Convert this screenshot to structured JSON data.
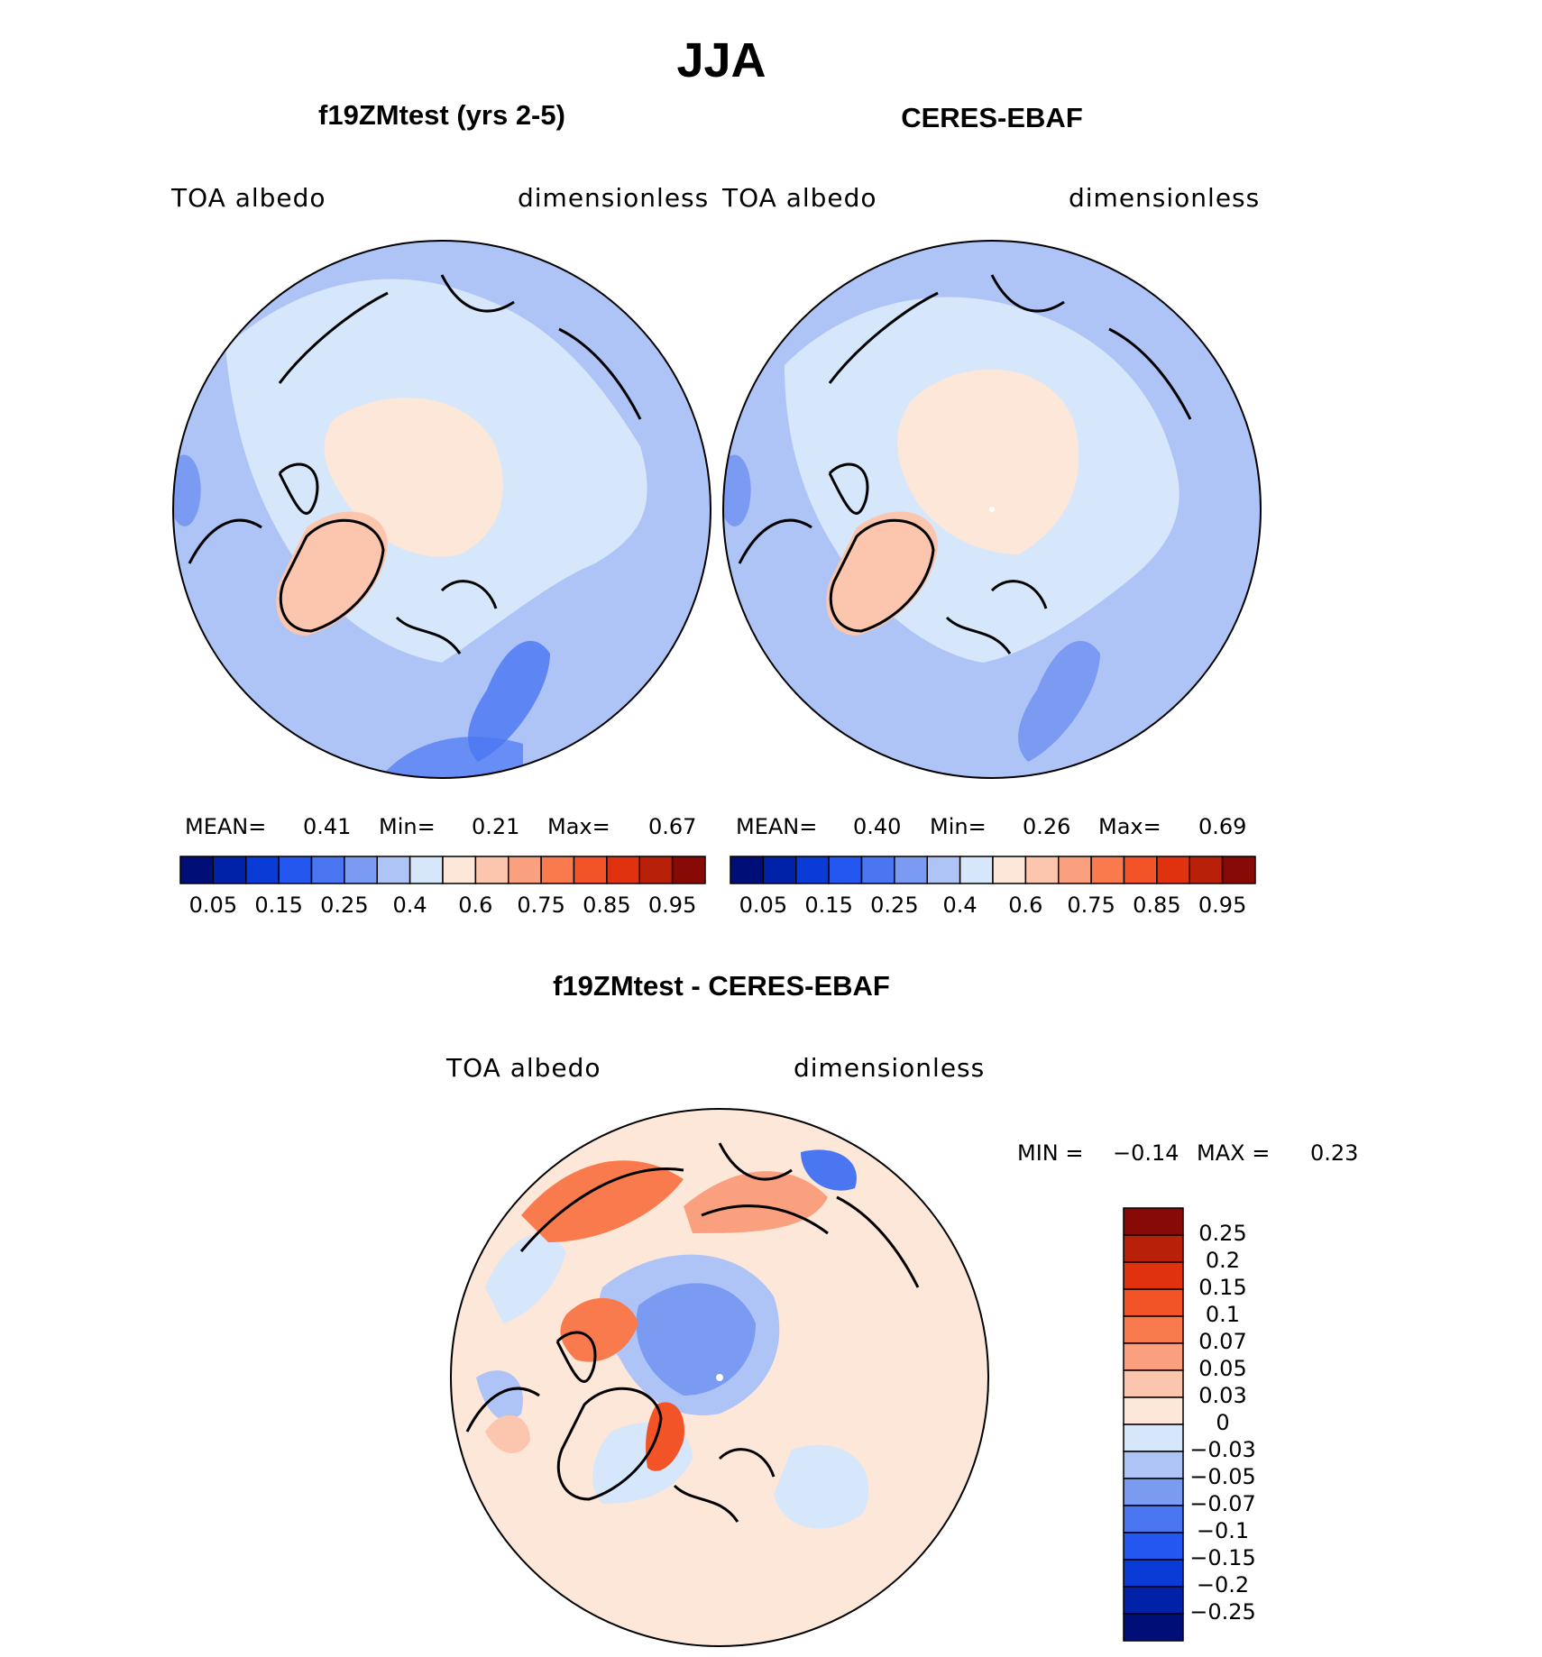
{
  "title": "JJA",
  "panels": [
    {
      "title": "f19ZMtest (yrs 2-5)",
      "left_label": "TOA albedo",
      "right_label": "dimensionless",
      "stats": {
        "mean_label": "MEAN=",
        "mean": "0.41",
        "min_label": "Min=",
        "min": "0.21",
        "max_label": "Max=",
        "max": "0.67"
      }
    },
    {
      "title": "CERES-EBAF",
      "left_label": "TOA albedo",
      "right_label": "dimensionless",
      "stats": {
        "mean_label": "MEAN=",
        "mean": "0.40",
        "min_label": "Min=",
        "min": "0.26",
        "max_label": "Max=",
        "max": "0.69"
      }
    },
    {
      "title": "f19ZMtest - CERES-EBAF",
      "left_label": "TOA albedo",
      "right_label": "dimensionless",
      "stats": {
        "min_label": "MIN =",
        "min": "−0.14",
        "max_label": "MAX =",
        "max": "0.23"
      }
    }
  ],
  "colorbar_abs": {
    "tick_labels": [
      "0.05",
      "0.15",
      "0.25",
      "0.4",
      "0.6",
      "0.75",
      "0.85",
      "0.95"
    ],
    "colors": [
      "#000f78",
      "#0022a8",
      "#0a3bd6",
      "#2457f0",
      "#4a76f2",
      "#7b9bf3",
      "#aec4f7",
      "#d6e6fb",
      "#fde7d9",
      "#fcc6ae",
      "#fba07e",
      "#f87a4d",
      "#f25327",
      "#e13210",
      "#b8200a",
      "#870a06"
    ]
  },
  "colorbar_diff": {
    "tick_labels": [
      "0.25",
      "0.2",
      "0.15",
      "0.1",
      "0.07",
      "0.05",
      "0.03",
      "0",
      "−0.03",
      "−0.05",
      "−0.07",
      "−0.1",
      "−0.15",
      "−0.2",
      "−0.25"
    ],
    "colors": [
      "#870a06",
      "#b8200a",
      "#e13210",
      "#f25327",
      "#f87a4d",
      "#fba07e",
      "#fcc6ae",
      "#fde7d9",
      "#d6e6fb",
      "#aec4f7",
      "#7b9bf3",
      "#4a76f2",
      "#2457f0",
      "#0a3bd6",
      "#0022a8",
      "#000f78"
    ]
  },
  "chart_data": {
    "type": "heatmap",
    "season": "JJA",
    "variable": "TOA albedo",
    "units": "dimensionless",
    "maps": [
      {
        "name": "f19ZMtest (yrs 2-5)",
        "mean": 0.41,
        "min": 0.21,
        "max": 0.67
      },
      {
        "name": "CERES-EBAF",
        "mean": 0.4,
        "min": 0.26,
        "max": 0.69
      },
      {
        "name": "f19ZMtest - CERES-EBAF",
        "min": -0.14,
        "max": 0.23
      }
    ],
    "abs_levels": [
      0.05,
      0.1,
      0.15,
      0.2,
      0.25,
      0.3,
      0.4,
      0.5,
      0.6,
      0.7,
      0.75,
      0.8,
      0.85,
      0.9,
      0.95
    ],
    "diff_levels": [
      0.25,
      0.2,
      0.15,
      0.1,
      0.07,
      0.05,
      0.03,
      0,
      -0.03,
      -0.05,
      -0.07,
      -0.1,
      -0.15,
      -0.2,
      -0.25
    ]
  }
}
